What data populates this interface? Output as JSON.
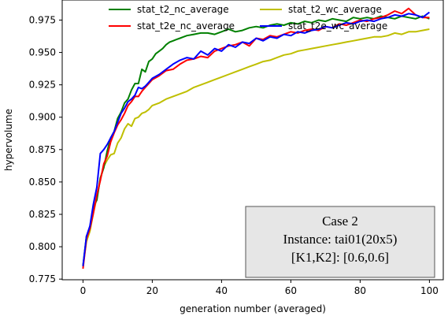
{
  "chart_data": {
    "type": "line",
    "title": "",
    "xlabel": "generation number (averaged)",
    "ylabel": "hypervolume",
    "xlim": [
      -6,
      104
    ],
    "ylim": [
      0.7745,
      0.9905
    ],
    "xticks": [
      0,
      20,
      40,
      60,
      80,
      100
    ],
    "yticks": [
      0.775,
      0.8,
      0.825,
      0.85,
      0.875,
      0.9,
      0.925,
      0.95,
      0.975
    ],
    "ytick_labels": [
      "0.775",
      "0.800",
      "0.825",
      "0.850",
      "0.875",
      "0.900",
      "0.925",
      "0.950",
      "0.975"
    ],
    "grid": false,
    "legend_position": "top, two columns",
    "series": [
      {
        "name": "stat_t2_nc_average",
        "color": "#008000",
        "x": [
          0,
          1,
          2,
          3,
          4,
          5,
          6,
          7,
          8,
          9,
          10,
          11,
          12,
          13,
          14,
          15,
          16,
          17,
          18,
          19,
          20,
          21,
          22,
          23,
          24,
          25,
          26,
          27,
          28,
          29,
          30,
          32,
          34,
          36,
          38,
          40,
          42,
          44,
          46,
          48,
          50,
          52,
          54,
          56,
          58,
          60,
          62,
          64,
          66,
          68,
          70,
          72,
          74,
          76,
          78,
          80,
          82,
          84,
          86,
          88,
          90,
          92,
          94,
          96,
          98,
          100
        ],
        "values": [
          0.785,
          0.808,
          0.814,
          0.831,
          0.836,
          0.853,
          0.861,
          0.874,
          0.884,
          0.889,
          0.899,
          0.904,
          0.911,
          0.914,
          0.921,
          0.926,
          0.926,
          0.937,
          0.935,
          0.943,
          0.945,
          0.949,
          0.951,
          0.953,
          0.956,
          0.958,
          0.959,
          0.96,
          0.961,
          0.962,
          0.963,
          0.964,
          0.965,
          0.965,
          0.964,
          0.966,
          0.968,
          0.966,
          0.967,
          0.969,
          0.97,
          0.969,
          0.971,
          0.972,
          0.971,
          0.973,
          0.972,
          0.974,
          0.973,
          0.975,
          0.974,
          0.976,
          0.975,
          0.974,
          0.977,
          0.976,
          0.977,
          0.976,
          0.978,
          0.977,
          0.976,
          0.978,
          0.977,
          0.976,
          0.978,
          0.976
        ]
      },
      {
        "name": "stat_t2e_nc_average",
        "color": "#ff0000",
        "x": [
          0,
          1,
          2,
          3,
          4,
          5,
          6,
          7,
          8,
          9,
          10,
          11,
          12,
          13,
          14,
          15,
          16,
          17,
          18,
          19,
          20,
          22,
          24,
          26,
          28,
          30,
          32,
          34,
          36,
          38,
          40,
          42,
          44,
          46,
          48,
          50,
          52,
          54,
          56,
          58,
          60,
          62,
          64,
          66,
          68,
          70,
          72,
          74,
          76,
          78,
          80,
          82,
          84,
          86,
          88,
          90,
          92,
          94,
          96,
          98,
          100
        ],
        "values": [
          0.783,
          0.806,
          0.814,
          0.826,
          0.84,
          0.851,
          0.864,
          0.87,
          0.881,
          0.888,
          0.894,
          0.898,
          0.903,
          0.909,
          0.912,
          0.916,
          0.916,
          0.92,
          0.923,
          0.926,
          0.929,
          0.932,
          0.936,
          0.937,
          0.941,
          0.944,
          0.945,
          0.947,
          0.946,
          0.951,
          0.953,
          0.955,
          0.956,
          0.958,
          0.955,
          0.961,
          0.96,
          0.963,
          0.962,
          0.964,
          0.966,
          0.965,
          0.967,
          0.968,
          0.967,
          0.97,
          0.969,
          0.972,
          0.971,
          0.973,
          0.975,
          0.974,
          0.976,
          0.977,
          0.979,
          0.982,
          0.98,
          0.984,
          0.979,
          0.977,
          0.977
        ]
      },
      {
        "name": "stat_t2_wc_average",
        "color": "#bfbf00",
        "x": [
          0,
          1,
          2,
          3,
          4,
          5,
          6,
          7,
          8,
          9,
          10,
          11,
          12,
          13,
          14,
          15,
          16,
          17,
          18,
          19,
          20,
          22,
          24,
          26,
          28,
          30,
          32,
          34,
          36,
          38,
          40,
          42,
          44,
          46,
          48,
          50,
          52,
          54,
          56,
          58,
          60,
          62,
          64,
          66,
          68,
          70,
          72,
          74,
          76,
          78,
          80,
          82,
          84,
          86,
          88,
          90,
          92,
          94,
          96,
          98,
          100
        ],
        "values": [
          0.785,
          0.804,
          0.812,
          0.826,
          0.838,
          0.852,
          0.862,
          0.867,
          0.871,
          0.872,
          0.88,
          0.884,
          0.891,
          0.895,
          0.893,
          0.899,
          0.9,
          0.903,
          0.904,
          0.906,
          0.909,
          0.911,
          0.914,
          0.916,
          0.918,
          0.92,
          0.923,
          0.925,
          0.927,
          0.929,
          0.931,
          0.933,
          0.935,
          0.937,
          0.939,
          0.941,
          0.943,
          0.944,
          0.946,
          0.948,
          0.949,
          0.951,
          0.952,
          0.953,
          0.954,
          0.955,
          0.956,
          0.957,
          0.958,
          0.959,
          0.96,
          0.961,
          0.962,
          0.962,
          0.963,
          0.965,
          0.964,
          0.966,
          0.966,
          0.967,
          0.968
        ]
      },
      {
        "name": "stat_t2e_wc_average",
        "color": "#0000ff",
        "x": [
          0,
          1,
          2,
          3,
          4,
          5,
          6,
          7,
          8,
          9,
          10,
          11,
          12,
          13,
          14,
          15,
          16,
          17,
          18,
          19,
          20,
          22,
          24,
          26,
          28,
          30,
          32,
          34,
          36,
          38,
          40,
          42,
          44,
          46,
          48,
          50,
          52,
          54,
          56,
          58,
          60,
          62,
          64,
          66,
          68,
          70,
          72,
          74,
          76,
          78,
          80,
          82,
          84,
          86,
          88,
          90,
          92,
          94,
          96,
          98,
          100
        ],
        "values": [
          0.785,
          0.808,
          0.816,
          0.833,
          0.846,
          0.872,
          0.875,
          0.879,
          0.884,
          0.889,
          0.896,
          0.903,
          0.907,
          0.912,
          0.914,
          0.917,
          0.923,
          0.922,
          0.924,
          0.927,
          0.93,
          0.933,
          0.937,
          0.941,
          0.944,
          0.946,
          0.945,
          0.951,
          0.948,
          0.953,
          0.951,
          0.956,
          0.954,
          0.958,
          0.957,
          0.961,
          0.959,
          0.962,
          0.961,
          0.964,
          0.963,
          0.966,
          0.965,
          0.967,
          0.968,
          0.97,
          0.969,
          0.971,
          0.973,
          0.972,
          0.974,
          0.975,
          0.974,
          0.976,
          0.977,
          0.979,
          0.978,
          0.98,
          0.979,
          0.977,
          0.981
        ]
      }
    ],
    "annotation": {
      "lines": [
        "Case 2",
        "Instance:  tai01(20x5)",
        "[K1,K2]:  [0.6,0.6]"
      ],
      "background": "#e6e6e6",
      "border": "#555555"
    }
  }
}
